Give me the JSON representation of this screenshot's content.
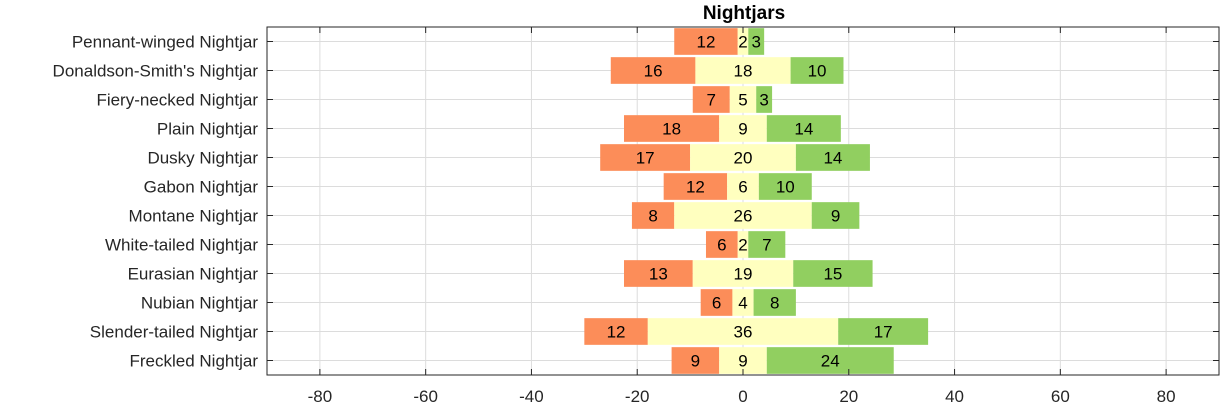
{
  "chart_data": {
    "type": "bar",
    "orientation": "horizontal",
    "stacking": "diverging",
    "title": "Nightjars",
    "xlabel": "",
    "ylabel": "",
    "xlim": [
      -90,
      90
    ],
    "xticks": [
      -80,
      -60,
      -40,
      -20,
      0,
      20,
      40,
      60,
      80
    ],
    "grid": true,
    "categories": [
      "Pennant-winged Nightjar",
      "Donaldson-Smith's Nightjar",
      "Fiery-necked Nightjar",
      "Plain Nightjar",
      "Dusky Nightjar",
      "Gabon Nightjar",
      "Montane Nightjar",
      "White-tailed Nightjar",
      "Eurasian Nightjar",
      "Nubian Nightjar",
      "Slender-tailed Nightjar",
      "Freckled Nightjar"
    ],
    "series": [
      {
        "values": [
          12,
          16,
          7,
          18,
          17,
          12,
          8,
          6,
          13,
          6,
          12,
          9
        ],
        "color": "#fc8d59",
        "placement": "left"
      },
      {
        "values": [
          2,
          18,
          5,
          9,
          20,
          6,
          26,
          2,
          19,
          4,
          36,
          9
        ],
        "color": "#ffffbf",
        "placement": "center"
      },
      {
        "values": [
          3,
          10,
          3,
          14,
          14,
          10,
          9,
          7,
          15,
          8,
          17,
          24
        ],
        "color": "#91cf60",
        "placement": "right"
      }
    ]
  }
}
